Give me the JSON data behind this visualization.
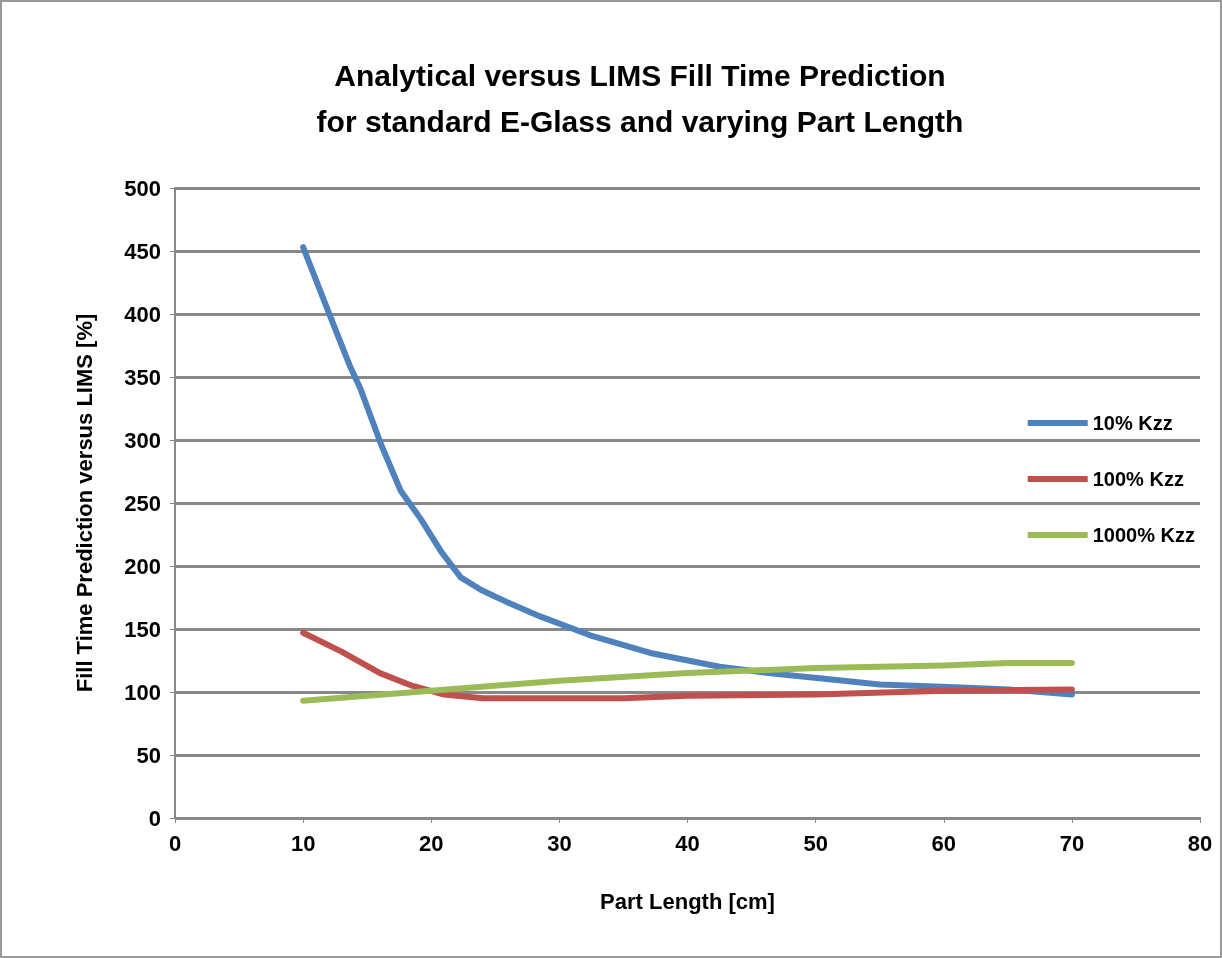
{
  "chart_data": {
    "type": "line",
    "title": "Analytical versus LIMS Fill Time Prediction\nfor standard E-Glass and varying Part Length",
    "xlabel": "Part Length [cm]",
    "ylabel": "Fill Time Prediction versus LIMS [%]",
    "xlim": [
      0,
      80
    ],
    "xticks": [
      0,
      10,
      20,
      30,
      40,
      50,
      60,
      70,
      80
    ],
    "ylim": [
      0,
      500
    ],
    "yticks": [
      0,
      50,
      100,
      150,
      200,
      250,
      300,
      350,
      400,
      450,
      500
    ],
    "grid": "y",
    "legend": "right",
    "marker": "none",
    "line_style": "solid",
    "series": [
      {
        "name": "10% Kzz",
        "color": "#4f81bd",
        "x": [
          10,
          12.2,
          13.6,
          14.5,
          16.1,
          17.6,
          19.2,
          20.8,
          22.3,
          23.9,
          26.2,
          28.5,
          32.4,
          37.1,
          42.5,
          47.2,
          50.3,
          55,
          60.4,
          65.1,
          70
        ],
        "values": [
          453,
          396,
          360,
          340,
          296,
          260,
          237,
          211,
          191,
          181,
          170,
          160,
          145,
          131,
          120,
          114,
          111,
          106,
          104,
          102,
          98
        ]
      },
      {
        "name": "100% Kzz",
        "color": "#c0504d",
        "x": [
          10,
          13,
          16,
          18.5,
          21,
          24,
          35,
          40,
          50,
          60,
          70
        ],
        "values": [
          147,
          132,
          115,
          105,
          98,
          95,
          95,
          97,
          98,
          101,
          102
        ]
      },
      {
        "name": "1000% Kzz",
        "color": "#9bbb59",
        "x": [
          10,
          20,
          30,
          40,
          50,
          60,
          65,
          70
        ],
        "values": [
          93,
          101,
          109,
          115,
          119,
          121,
          123,
          123
        ]
      }
    ]
  }
}
